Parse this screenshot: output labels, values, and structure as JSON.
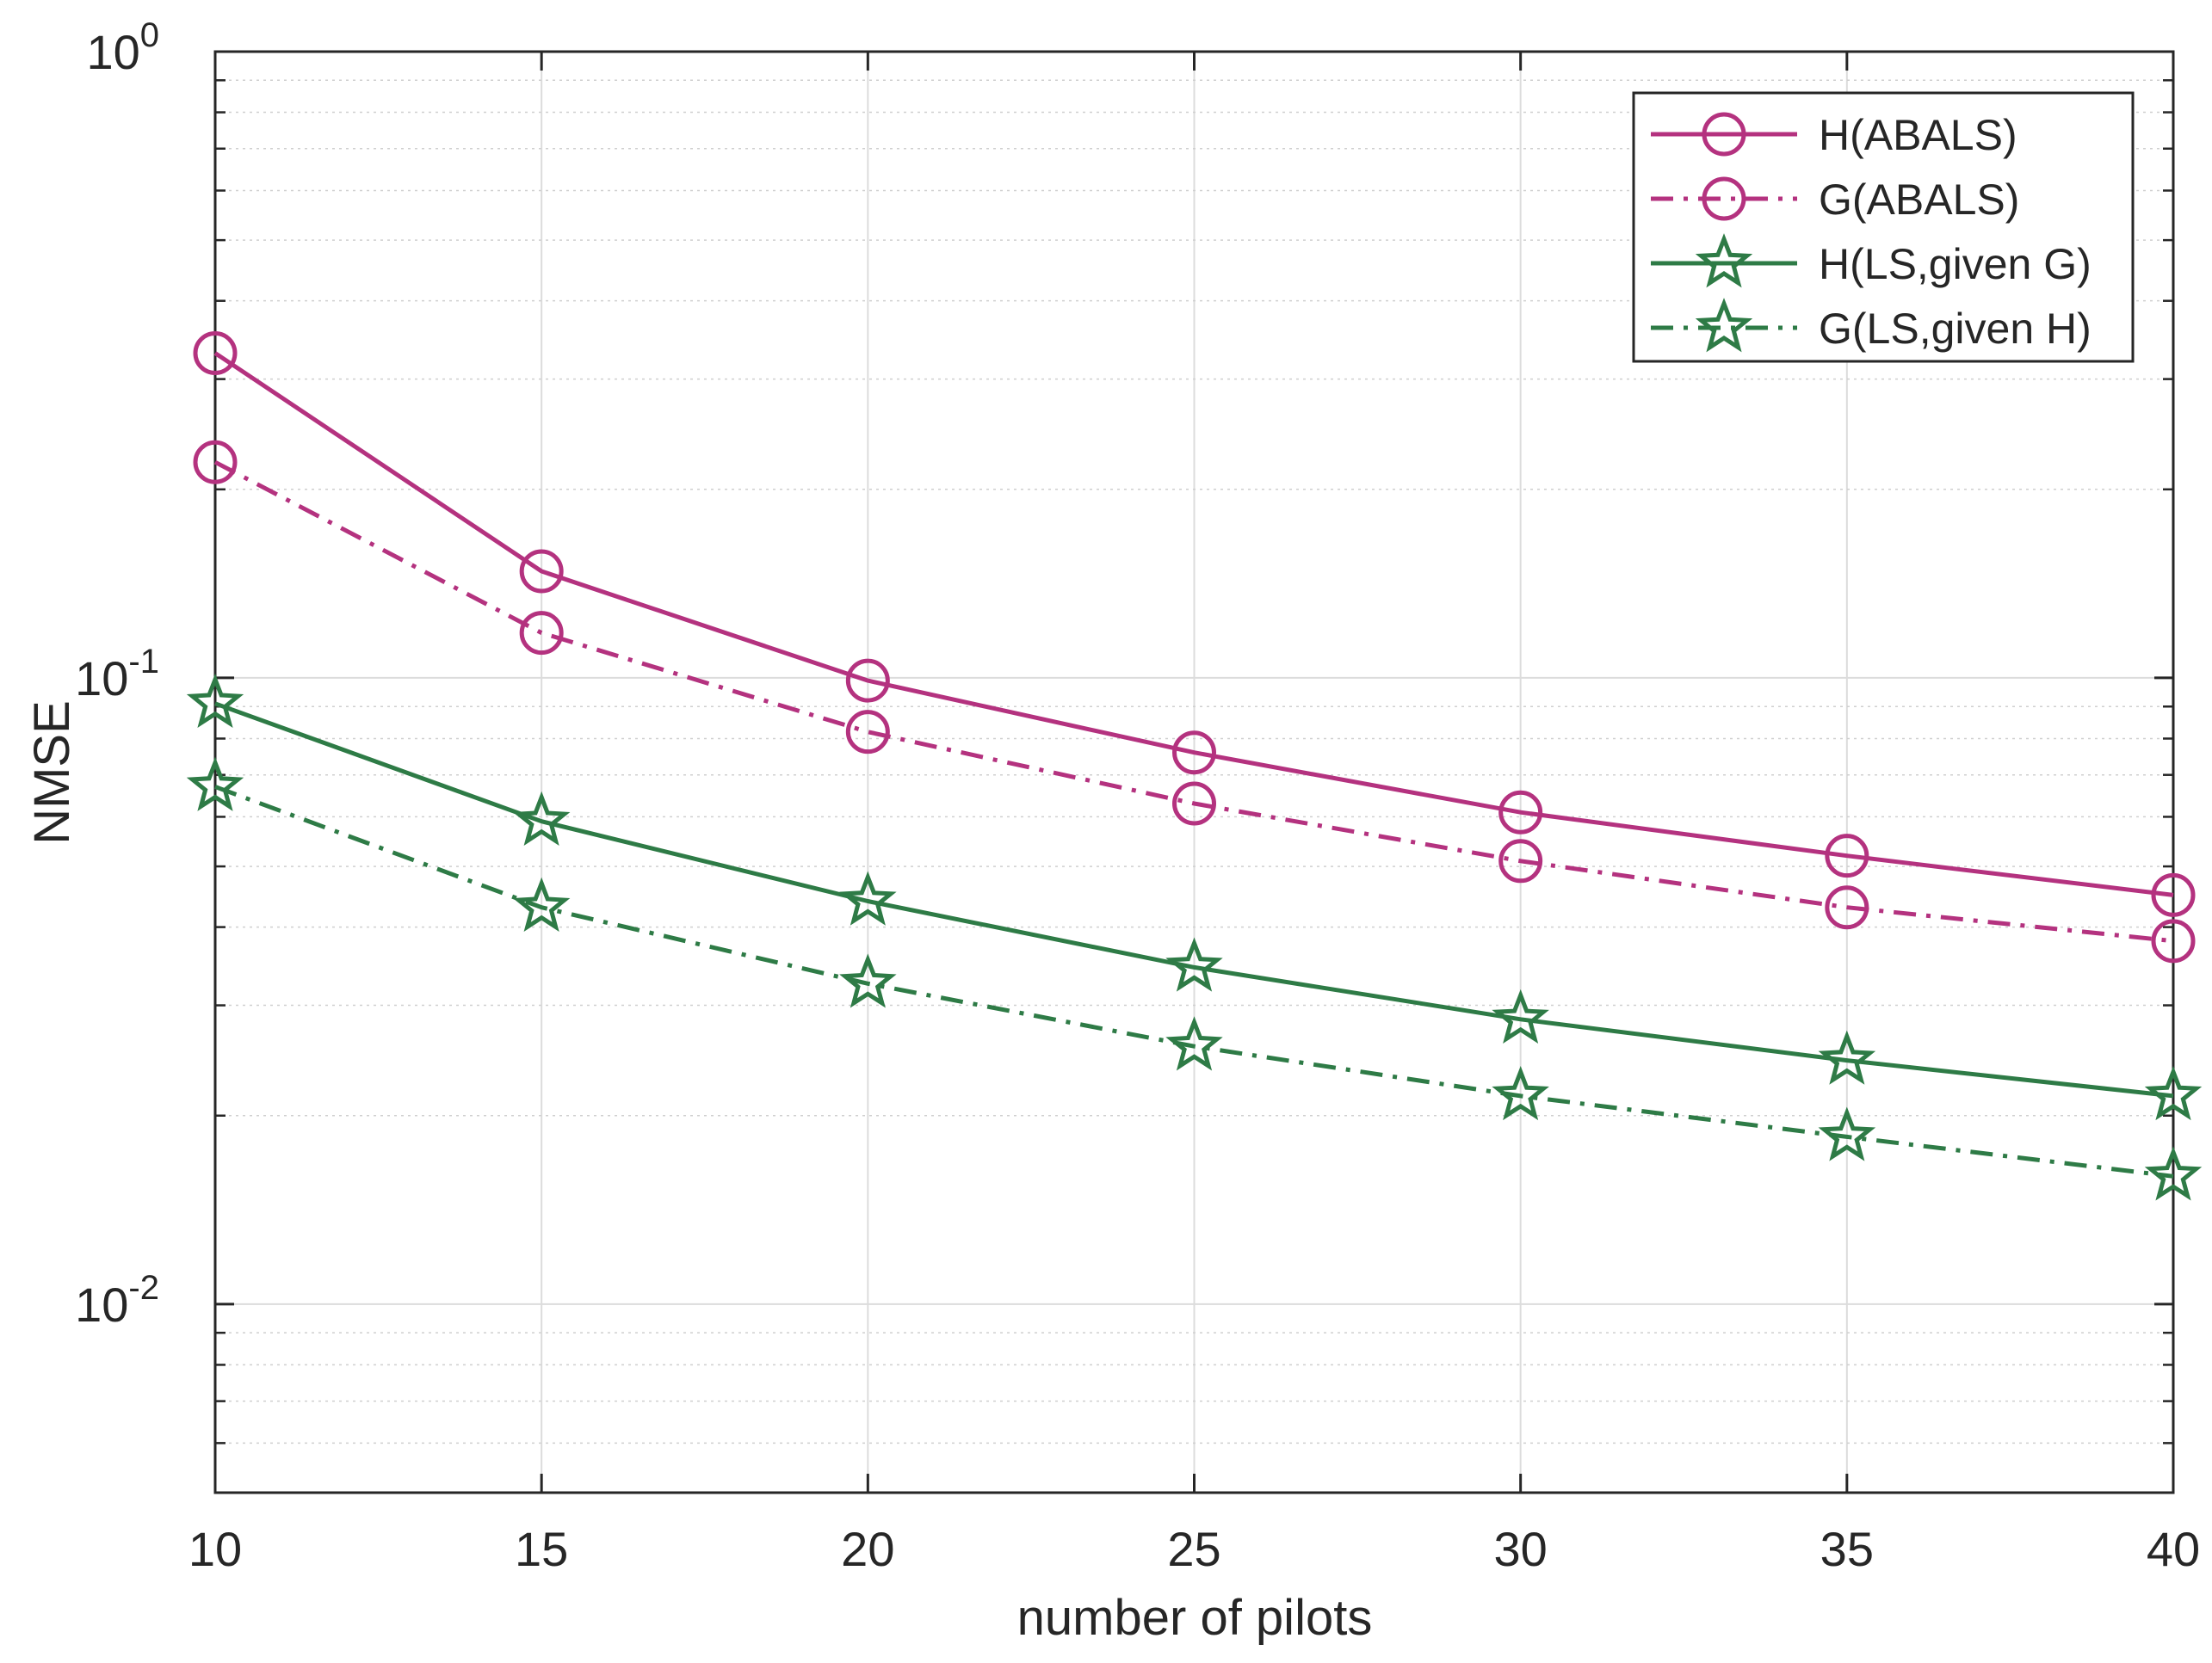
{
  "chart_data": {
    "type": "line",
    "title": "",
    "xlabel": "number of pilots",
    "ylabel": "NMSE",
    "yscale": "log",
    "x": [
      10,
      15,
      20,
      25,
      30,
      35,
      40
    ],
    "xlim": [
      10,
      40
    ],
    "ylim": [
      0.005,
      1
    ],
    "x_ticks": [
      "10",
      "15",
      "20",
      "25",
      "30",
      "35",
      "40"
    ],
    "y_ticks": [
      {
        "value": 1,
        "base": "10",
        "exponent": "0"
      },
      {
        "value": 0.1,
        "base": "10",
        "exponent": "-1"
      },
      {
        "value": 0.01,
        "base": "10",
        "exponent": "-2"
      }
    ],
    "grid": true,
    "legend_position": "top-right",
    "series": [
      {
        "name": "H(ABALS)",
        "color": "#b4327f",
        "line_style": "solid",
        "marker": "circle",
        "values": [
          0.33,
          0.148,
          0.099,
          0.076,
          0.061,
          0.052,
          0.045
        ]
      },
      {
        "name": "G(ABALS)",
        "color": "#b4327f",
        "line_style": "dash-dot",
        "marker": "circle",
        "values": [
          0.221,
          0.118,
          0.082,
          0.063,
          0.051,
          0.043,
          0.038
        ]
      },
      {
        "name": "H(LS,given G)",
        "color": "#2e7b46",
        "line_style": "solid",
        "marker": "star",
        "values": [
          0.091,
          0.059,
          0.044,
          0.0345,
          0.0285,
          0.0245,
          0.0215
        ]
      },
      {
        "name": "G(LS,given H)",
        "color": "#2e7b46",
        "line_style": "dash-dot",
        "marker": "star",
        "values": [
          0.067,
          0.043,
          0.0325,
          0.0258,
          0.0215,
          0.0185,
          0.016
        ]
      }
    ]
  }
}
